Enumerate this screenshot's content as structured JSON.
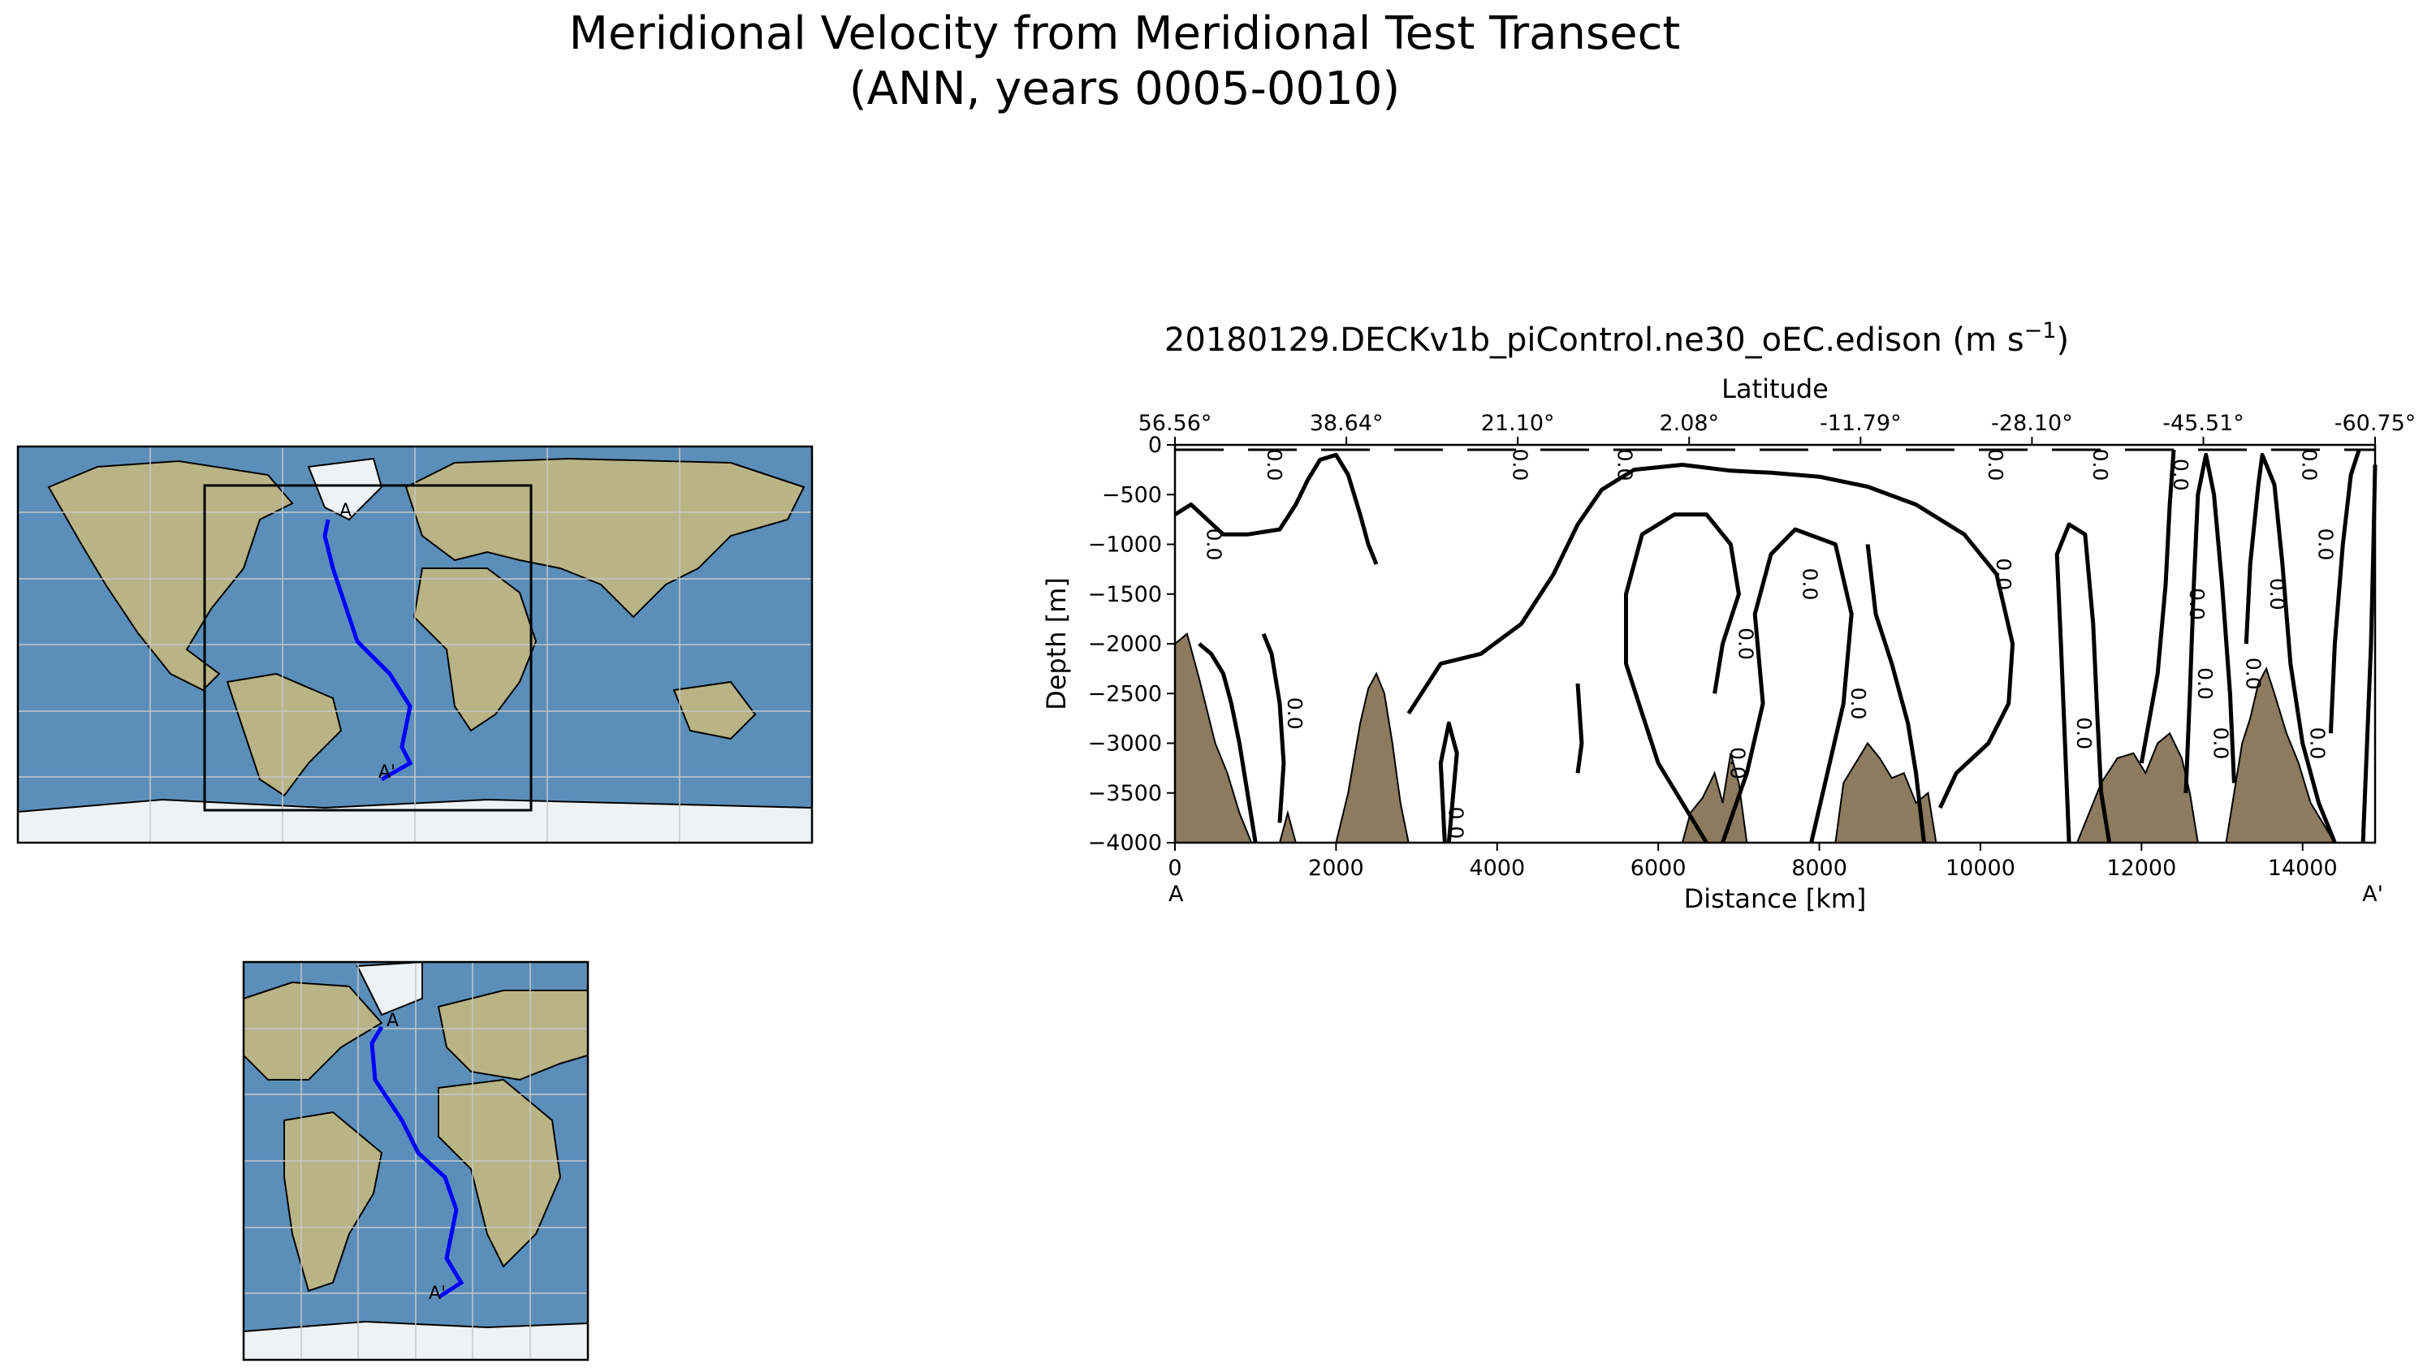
{
  "figure": {
    "title_line1": "Meridional Velocity from Meridional Test Transect",
    "title_line2": "(ANN, years 0005-0010)"
  },
  "chart_data": {
    "type": "contour",
    "title": "20180129.DECKv1b_piControl.ne30_oEC.edison (m s",
    "title_superscript": "−1",
    "title_suffix": ")",
    "xlabel": "Distance [km]",
    "ylabel": "Depth [m]",
    "top_xlabel": "Latitude",
    "xlim": [
      0,
      14900
    ],
    "ylim": [
      -4000,
      0
    ],
    "x_ticks": [
      0,
      2000,
      4000,
      6000,
      8000,
      10000,
      12000,
      14000
    ],
    "y_ticks": [
      0,
      -500,
      -1000,
      -1500,
      -2000,
      -2500,
      -3000,
      -3500,
      -4000
    ],
    "x_tick_labels": [
      "0",
      "2000",
      "4000",
      "6000",
      "8000",
      "10000",
      "12000",
      "14000"
    ],
    "y_tick_labels": [
      "0",
      "−500",
      "−1000",
      "−1500",
      "−2000",
      "−2500",
      "−3000",
      "−3500",
      "−4000"
    ],
    "top_ticks": [
      {
        "x": 0,
        "label": "56.56°"
      },
      {
        "x": 2128,
        "label": "38.64°"
      },
      {
        "x": 4256,
        "label": "21.10°"
      },
      {
        "x": 6384,
        "label": "2.08°"
      },
      {
        "x": 8512,
        "label": "-11.79°"
      },
      {
        "x": 10640,
        "label": "-28.10°"
      },
      {
        "x": 12768,
        "label": "-45.51°"
      },
      {
        "x": 14900,
        "label": "-60.75°"
      }
    ],
    "endpoint_labels": {
      "start": "A",
      "end": "A'"
    },
    "contour_level_label": "0.0",
    "bathymetry_color": "#8c7b5e",
    "bathymetry": [
      [
        0,
        -2000
      ],
      [
        150,
        -1900
      ],
      [
        300,
        -2350
      ],
      [
        500,
        -3000
      ],
      [
        650,
        -3300
      ],
      [
        800,
        -3700
      ],
      [
        950,
        -4000
      ],
      [
        1300,
        -4000
      ],
      [
        1400,
        -3700
      ],
      [
        1500,
        -4000
      ],
      [
        2000,
        -4000
      ],
      [
        2150,
        -3500
      ],
      [
        2300,
        -2800
      ],
      [
        2400,
        -2450
      ],
      [
        2500,
        -2300
      ],
      [
        2600,
        -2500
      ],
      [
        2700,
        -3000
      ],
      [
        2800,
        -3600
      ],
      [
        2900,
        -4000
      ],
      [
        6300,
        -4000
      ],
      [
        6400,
        -3700
      ],
      [
        6550,
        -3550
      ],
      [
        6700,
        -3300
      ],
      [
        6800,
        -3600
      ],
      [
        6900,
        -3100
      ],
      [
        7000,
        -3400
      ],
      [
        7100,
        -4000
      ],
      [
        8200,
        -4000
      ],
      [
        8300,
        -3400
      ],
      [
        8450,
        -3200
      ],
      [
        8600,
        -3000
      ],
      [
        8750,
        -3150
      ],
      [
        8900,
        -3350
      ],
      [
        9050,
        -3300
      ],
      [
        9200,
        -3600
      ],
      [
        9350,
        -3500
      ],
      [
        9450,
        -4000
      ],
      [
        11200,
        -4000
      ],
      [
        11350,
        -3700
      ],
      [
        11500,
        -3400
      ],
      [
        11700,
        -3150
      ],
      [
        11900,
        -3100
      ],
      [
        12050,
        -3300
      ],
      [
        12200,
        -3000
      ],
      [
        12350,
        -2900
      ],
      [
        12500,
        -3150
      ],
      [
        12600,
        -3500
      ],
      [
        12700,
        -4000
      ],
      [
        13050,
        -4000
      ],
      [
        13150,
        -3500
      ],
      [
        13250,
        -3000
      ],
      [
        13350,
        -2750
      ],
      [
        13450,
        -2400
      ],
      [
        13550,
        -2250
      ],
      [
        13650,
        -2500
      ],
      [
        13800,
        -2900
      ],
      [
        13950,
        -3200
      ],
      [
        14100,
        -3600
      ],
      [
        14250,
        -3800
      ],
      [
        14400,
        -4000
      ]
    ],
    "contours": [
      [
        [
          0,
          -700
        ],
        [
          200,
          -600
        ],
        [
          400,
          -750
        ],
        [
          600,
          -900
        ],
        [
          900,
          -900
        ],
        [
          1300,
          -850
        ],
        [
          1500,
          -600
        ],
        [
          1650,
          -350
        ],
        [
          1800,
          -150
        ],
        [
          2000,
          -100
        ],
        [
          2150,
          -300
        ],
        [
          2300,
          -700
        ],
        [
          2400,
          -1000
        ],
        [
          2500,
          -1200
        ]
      ],
      [
        [
          1000,
          -4000
        ],
        [
          900,
          -3500
        ],
        [
          800,
          -3000
        ],
        [
          700,
          -2600
        ],
        [
          600,
          -2300
        ],
        [
          450,
          -2100
        ],
        [
          300,
          -2000
        ]
      ],
      [
        [
          1300,
          -3800
        ],
        [
          1350,
          -3200
        ],
        [
          1300,
          -2600
        ],
        [
          1200,
          -2100
        ],
        [
          1100,
          -1900
        ]
      ],
      [
        [
          2900,
          -2700
        ],
        [
          3300,
          -2200
        ],
        [
          3800,
          -2100
        ],
        [
          4300,
          -1800
        ],
        [
          4700,
          -1300
        ],
        [
          5000,
          -800
        ],
        [
          5300,
          -450
        ],
        [
          5700,
          -250
        ],
        [
          6300,
          -200
        ],
        [
          6900,
          -260
        ],
        [
          7400,
          -280
        ],
        [
          8000,
          -320
        ],
        [
          8600,
          -420
        ],
        [
          9200,
          -600
        ],
        [
          9800,
          -900
        ],
        [
          10200,
          -1300
        ],
        [
          10400,
          -2000
        ],
        [
          10350,
          -2600
        ],
        [
          10100,
          -3000
        ],
        [
          9700,
          -3300
        ],
        [
          9500,
          -3650
        ]
      ],
      [
        [
          3400,
          -4000
        ],
        [
          3500,
          -3100
        ],
        [
          3400,
          -2800
        ],
        [
          3300,
          -3200
        ],
        [
          3350,
          -4000
        ]
      ],
      [
        [
          5000,
          -2400
        ],
        [
          5050,
          -3000
        ],
        [
          5000,
          -3300
        ]
      ],
      [
        [
          6600,
          -4000
        ],
        [
          6300,
          -3600
        ],
        [
          6000,
          -3200
        ],
        [
          5800,
          -2700
        ],
        [
          5600,
          -2200
        ],
        [
          5600,
          -1500
        ],
        [
          5800,
          -900
        ],
        [
          6200,
          -700
        ],
        [
          6600,
          -700
        ],
        [
          6900,
          -1000
        ],
        [
          7000,
          -1500
        ],
        [
          6800,
          -2000
        ],
        [
          6700,
          -2500
        ]
      ],
      [
        [
          6800,
          -4000
        ],
        [
          7100,
          -3300
        ],
        [
          7300,
          -2600
        ],
        [
          7200,
          -1700
        ],
        [
          7400,
          -1100
        ],
        [
          7700,
          -850
        ],
        [
          8200,
          -1000
        ],
        [
          8400,
          -1700
        ],
        [
          8300,
          -2600
        ],
        [
          8100,
          -3300
        ],
        [
          7900,
          -4000
        ]
      ],
      [
        [
          8600,
          -1000
        ],
        [
          8700,
          -1700
        ],
        [
          8900,
          -2200
        ],
        [
          9100,
          -2800
        ],
        [
          9200,
          -3300
        ],
        [
          9300,
          -4000
        ]
      ],
      [
        [
          11100,
          -4000
        ],
        [
          11050,
          -3000
        ],
        [
          11000,
          -2000
        ],
        [
          10950,
          -1100
        ],
        [
          11100,
          -800
        ],
        [
          11300,
          -900
        ],
        [
          11400,
          -1800
        ],
        [
          11450,
          -2700
        ],
        [
          11500,
          -3500
        ],
        [
          11600,
          -4000
        ]
      ],
      [
        [
          12000,
          -3200
        ],
        [
          12200,
          -2300
        ],
        [
          12300,
          -1400
        ],
        [
          12350,
          -600
        ],
        [
          12400,
          -50
        ]
      ],
      [
        [
          12550,
          -3500
        ],
        [
          12600,
          -2500
        ],
        [
          12650,
          -1400
        ],
        [
          12700,
          -500
        ],
        [
          12800,
          -100
        ],
        [
          12900,
          -500
        ],
        [
          13000,
          -1400
        ],
        [
          13100,
          -2500
        ],
        [
          13150,
          -3400
        ]
      ],
      [
        [
          13300,
          -2000
        ],
        [
          13350,
          -1200
        ],
        [
          13450,
          -400
        ],
        [
          13500,
          -100
        ],
        [
          13650,
          -400
        ],
        [
          13750,
          -1200
        ],
        [
          13850,
          -2200
        ],
        [
          14000,
          -3000
        ],
        [
          14200,
          -3600
        ],
        [
          14400,
          -4000
        ]
      ],
      [
        [
          14350,
          -2900
        ],
        [
          14400,
          -2000
        ],
        [
          14500,
          -1000
        ],
        [
          14600,
          -300
        ],
        [
          14700,
          -50
        ]
      ],
      [
        [
          14750,
          -4000
        ],
        [
          14800,
          -3000
        ],
        [
          14850,
          -2000
        ],
        [
          14880,
          -1000
        ],
        [
          14900,
          -200
        ]
      ]
    ],
    "contour_label_positions": [
      [
        1150,
        -200
      ],
      [
        4200,
        -200
      ],
      [
        5500,
        -200
      ],
      [
        10100,
        -200
      ],
      [
        11400,
        -200
      ],
      [
        14000,
        -200
      ],
      [
        400,
        -1000
      ],
      [
        10200,
        -1300
      ],
      [
        7800,
        -1400
      ],
      [
        7000,
        -2000
      ],
      [
        6900,
        -3200
      ],
      [
        13600,
        -1500
      ],
      [
        12600,
        -1600
      ],
      [
        14200,
        -1000
      ],
      [
        1400,
        -2700
      ],
      [
        3400,
        -3800
      ],
      [
        8400,
        -2600
      ],
      [
        11200,
        -2900
      ],
      [
        12900,
        -3000
      ],
      [
        14100,
        -3000
      ],
      [
        12700,
        -2400
      ],
      [
        12400,
        -300
      ],
      [
        13300,
        -2300
      ]
    ]
  },
  "maps": {
    "transect_label_start": "A",
    "transect_label_end": "A'",
    "ocean_color": "#5b8fba",
    "land_color": "#b9b486",
    "ice_color": "#eef2f5",
    "transect_color": "#0000ff"
  }
}
